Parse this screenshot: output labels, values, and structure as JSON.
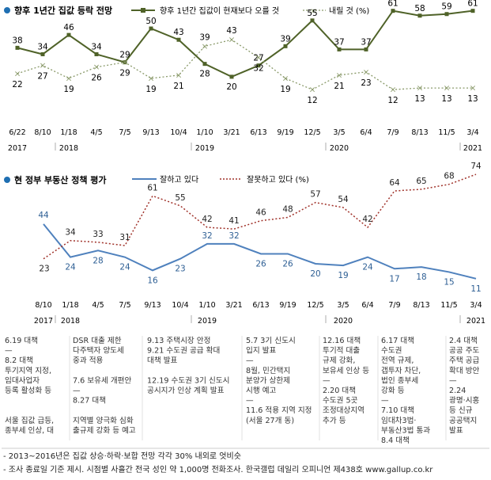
{
  "chart_data": [
    {
      "type": "line",
      "title": "향후 1년간 집값 등락 전망",
      "x": [
        "6/22",
        "8/10",
        "1/18",
        "4/5",
        "7/5",
        "9/13",
        "10/4",
        "1/10",
        "3/21",
        "6/13",
        "9/19",
        "12/5",
        "3/5",
        "6/4",
        "7/9",
        "8/13",
        "11/5",
        "3/4"
      ],
      "year_labels": [
        {
          "label": "2017",
          "index": 0
        },
        {
          "label": "2018",
          "index": 2
        },
        {
          "label": "2019",
          "index": 7
        },
        {
          "label": "2020",
          "index": 12
        },
        {
          "label": "2021",
          "index": 17
        }
      ],
      "ylim": [
        0,
        70
      ],
      "series": [
        {
          "name": "향후 1년간 집값이 현재보다 오를 것",
          "color": "#4f6228",
          "style": "solid",
          "marker": "square",
          "values": [
            38,
            34,
            46,
            34,
            29,
            50,
            43,
            28,
            20,
            27,
            39,
            55,
            37,
            37,
            61,
            58,
            59,
            61
          ]
        },
        {
          "name": "내릴 것 (%)",
          "color": "#8a9a6a",
          "style": "dotted",
          "marker": "x",
          "values": [
            22,
            27,
            19,
            26,
            29,
            19,
            21,
            39,
            43,
            32,
            19,
            12,
            21,
            23,
            12,
            13,
            13,
            13
          ]
        }
      ]
    },
    {
      "type": "line",
      "title": "현 정부 부동산 정책 평가",
      "x": [
        "8/10",
        "1/18",
        "4/5",
        "7/5",
        "9/13",
        "10/4",
        "1/10",
        "3/21",
        "6/13",
        "9/19",
        "12/5",
        "3/5",
        "6/4",
        "7/9",
        "8/13",
        "11/5",
        "3/4"
      ],
      "year_labels": [
        {
          "label": "2017",
          "index": 0
        },
        {
          "label": "2018",
          "index": 1
        },
        {
          "label": "2019",
          "index": 6
        },
        {
          "label": "2020",
          "index": 11
        },
        {
          "label": "2021",
          "index": 16
        }
      ],
      "ylim": [
        0,
        80
      ],
      "series": [
        {
          "name": "잘하고 있다",
          "color": "#4f81bd",
          "style": "solid",
          "marker": "none",
          "values": [
            44,
            24,
            28,
            24,
            16,
            23,
            32,
            32,
            26,
            26,
            20,
            19,
            24,
            17,
            18,
            15,
            11
          ]
        },
        {
          "name": "잘못하고 있다 (%)",
          "color": "#a0322a",
          "style": "dotted",
          "marker": "none",
          "values": [
            23,
            34,
            33,
            31,
            61,
            55,
            42,
            41,
            46,
            48,
            57,
            54,
            42,
            64,
            65,
            68,
            74
          ]
        }
      ]
    }
  ],
  "events": [
    {
      "lines": [
        "6.19 대책",
        "—",
        "8.2 대책",
        "투기지역 지정,",
        "임대사업자",
        "등록 활성화 등",
        "",
        "",
        "서울 집값 급등,",
        "종부세 인상, 대"
      ]
    },
    {
      "lines": [
        "DSR 대출 제한",
        "다주택자 양도세",
        "중과 적용",
        "",
        "   7.6 보유세 개편안",
        "                           —",
        "             8.27 대책",
        "",
        "지역별 양극화 심화",
        "출규제 강화 등 예고"
      ]
    },
    {
      "lines": [
        "9.13 주택시장 안정",
        "9.21 수도권 공급 확대",
        "대책 발표",
        "",
        "12.19 수도권 3기 신도시",
        "공시지가 인상 계획 발표"
      ]
    },
    {
      "lines": [
        "5.7 3기 신도시",
        "입지 발표",
        "—",
        "8월, 민간택지",
        "분양가 상한제",
        "시행 예고",
        "—",
        "11.6 적용 지역 지정",
        "(서울 27개 동)"
      ]
    },
    {
      "lines": [
        "12.16 대책",
        "투기적 대출",
        "규제 강화,",
        "보유세 인상 등",
        "—",
        "2.20 대책",
        "수도권 5곳",
        "조정대상지역",
        "추가 등"
      ]
    },
    {
      "lines": [
        "6.17 대책",
        "수도권",
        "전역 규제,",
        "갭투자 차단,",
        "법인 종부세",
        "강화 등",
        "—",
        "7.10 대책",
        "임대차3법·",
        "부동산3법 통과",
        "8.4 대책"
      ]
    },
    {
      "lines": [
        "2.4 대책",
        "공공 주도",
        "주택 공급",
        "확대 방안",
        "—",
        "2.24",
        "광명·시흥",
        "등 신규",
        "공공택지",
        "발표"
      ]
    }
  ],
  "footnotes": [
    "- 2013~2016년은 집값 상승·하락·보합 전망 각각 30% 내외로 엇비슷",
    "- 조사 종료일 기준 제시. 시점별 사흘간 전국 성인 약 1,000명 전화조사. 한국갤럽 데일리 오피니언 제438호 www.gallup.co.kr"
  ],
  "colors": {
    "bullet": "#1f6fb2",
    "year_rule": "#999999"
  }
}
